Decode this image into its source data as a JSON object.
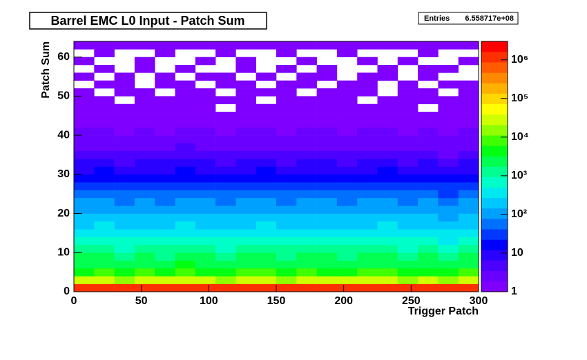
{
  "chart_data": {
    "type": "heatmap",
    "title": "Barrel EMC L0 Input - Patch Sum",
    "stats_label": "Entries",
    "stats_value": "6.558717e+08",
    "x_label": "Trigger Patch",
    "y_label": "Patch Sum",
    "xlim": [
      0,
      300
    ],
    "xticks": [
      0,
      50,
      100,
      150,
      200,
      250,
      300
    ],
    "ylim": [
      0,
      64
    ],
    "yticks": [
      0,
      10,
      20,
      30,
      40,
      50,
      60
    ],
    "zlim": [
      1,
      3000000
    ],
    "zlog": true,
    "zticks": [
      1,
      10,
      {
        "value": 100,
        "label": "10²"
      },
      {
        "value": 1000,
        "label": "10³"
      },
      {
        "value": 10000,
        "label": "10⁴"
      },
      {
        "value": 100000,
        "label": "10⁵"
      },
      {
        "value": 1000000,
        "label": "10⁶"
      }
    ],
    "colormap": [
      "#7f00ff",
      "#6a00ff",
      "#4c00ff",
      "#2a00ff",
      "#0000ff",
      "#0038ff",
      "#0070ff",
      "#00a0ff",
      "#00c8ff",
      "#00e8f0",
      "#00ffc8",
      "#00ff90",
      "#00ff50",
      "#00ff10",
      "#40ff00",
      "#90ff00",
      "#d0ff00",
      "#ffff00",
      "#ffd800",
      "#ffb000",
      "#ff8800",
      "#ff5c00",
      "#ff3000",
      "#ff0000"
    ],
    "xbins": [
      0,
      15,
      30,
      45,
      60,
      75,
      90,
      105,
      120,
      135,
      150,
      165,
      180,
      195,
      210,
      225,
      240,
      255,
      270,
      285,
      300
    ],
    "ybins": [
      0,
      2,
      4,
      6,
      8,
      10,
      12,
      14,
      16,
      18,
      20,
      22,
      24,
      26,
      28,
      30,
      32,
      34,
      36,
      38,
      40,
      42,
      44,
      46,
      48,
      50,
      52,
      54,
      56,
      58,
      60,
      62,
      64
    ],
    "z": [
      [
        1100000,
        1000000,
        1200000,
        950000,
        1100000,
        1050000,
        1000000,
        900000,
        1150000,
        1000000,
        1100000,
        950000,
        1050000,
        1100000,
        1000000,
        1200000,
        950000,
        1000000,
        900000,
        1100000
      ],
      [
        22000,
        25000,
        20000,
        24000,
        21000,
        23000,
        26000,
        19000,
        22000,
        25000,
        20000,
        23000,
        24000,
        21000,
        22000,
        25000,
        20000,
        23000,
        18000,
        24000
      ],
      [
        6000,
        6500,
        5500,
        6200,
        5800,
        6400,
        6000,
        5200,
        6100,
        6600,
        5700,
        6300,
        6000,
        5900,
        6200,
        6500,
        5600,
        6000,
        5000,
        6300
      ],
      [
        3000,
        3200,
        2800,
        3100,
        2900,
        3300,
        3000,
        2600,
        3100,
        3200,
        2800,
        3000,
        3100,
        2900,
        3000,
        3200,
        2700,
        3000,
        2500,
        3100
      ],
      [
        1800,
        1900,
        1600,
        1850,
        1700,
        1950,
        1800,
        1500,
        1850,
        1900,
        1650,
        1800,
        1850,
        1700,
        1800,
        1900,
        1600,
        1750,
        1450,
        1850
      ],
      [
        1000,
        1100,
        900,
        1050,
        950,
        1100,
        1000,
        850,
        1050,
        1100,
        950,
        1000,
        1050,
        950,
        1000,
        1100,
        900,
        1000,
        800,
        1050
      ],
      [
        600,
        650,
        550,
        620,
        580,
        660,
        600,
        500,
        620,
        650,
        560,
        600,
        630,
        570,
        600,
        650,
        540,
        600,
        480,
        620
      ],
      [
        350,
        380,
        320,
        360,
        340,
        390,
        350,
        300,
        360,
        380,
        330,
        350,
        370,
        330,
        350,
        380,
        320,
        350,
        280,
        360
      ],
      [
        250,
        270,
        230,
        260,
        240,
        280,
        250,
        210,
        260,
        270,
        230,
        250,
        260,
        240,
        250,
        270,
        220,
        250,
        200,
        260
      ],
      [
        180,
        190,
        160,
        185,
        170,
        200,
        180,
        150,
        185,
        190,
        165,
        180,
        185,
        170,
        180,
        190,
        160,
        175,
        140,
        185
      ],
      [
        120,
        130,
        110,
        125,
        115,
        135,
        120,
        100,
        125,
        130,
        110,
        120,
        125,
        115,
        120,
        130,
        105,
        120,
        95,
        125
      ],
      [
        80,
        85,
        70,
        82,
        75,
        90,
        80,
        65,
        82,
        85,
        72,
        80,
        82,
        76,
        80,
        85,
        70,
        78,
        62,
        82
      ],
      [
        50,
        55,
        45,
        52,
        48,
        58,
        50,
        42,
        52,
        55,
        46,
        50,
        52,
        48,
        50,
        55,
        44,
        50,
        40,
        52
      ],
      [
        30,
        33,
        27,
        31,
        29,
        35,
        30,
        25,
        31,
        33,
        28,
        30,
        31,
        29,
        30,
        33,
        26,
        30,
        24,
        31
      ],
      [
        18,
        20,
        16,
        19,
        17,
        21,
        18,
        15,
        19,
        20,
        17,
        18,
        19,
        17,
        18,
        20,
        16,
        18,
        14,
        19
      ],
      [
        12,
        13,
        10,
        12,
        11,
        14,
        12,
        10,
        12,
        13,
        11,
        12,
        12,
        11,
        12,
        13,
        10,
        12,
        9,
        12
      ],
      [
        7,
        8,
        6,
        7,
        7,
        8,
        7,
        6,
        7,
        8,
        6,
        7,
        7,
        6,
        7,
        8,
        6,
        7,
        5,
        7
      ],
      [
        5,
        5,
        4,
        5,
        4,
        6,
        5,
        4,
        5,
        5,
        4,
        5,
        5,
        4,
        5,
        5,
        4,
        5,
        3,
        5
      ],
      [
        3,
        3,
        2,
        3,
        3,
        4,
        3,
        2,
        3,
        3,
        3,
        3,
        3,
        2,
        3,
        3,
        2,
        3,
        2,
        3
      ],
      [
        2.5,
        2,
        2,
        3,
        2,
        3,
        2,
        2,
        2,
        3,
        2,
        2,
        3,
        2,
        2,
        3,
        2,
        2,
        2,
        2
      ],
      [
        2,
        2,
        1.5,
        2,
        1.5,
        2,
        2,
        1.5,
        2,
        2,
        1.5,
        2,
        2,
        1.5,
        2,
        2,
        1.5,
        2,
        1.5,
        2
      ],
      [
        1.5,
        1.5,
        1,
        1.5,
        1,
        1.5,
        1.5,
        1,
        1.5,
        1.5,
        1,
        1.5,
        1.5,
        1,
        1.5,
        1.5,
        1,
        1.5,
        1,
        1.5
      ],
      [
        1,
        1.5,
        1,
        1,
        1,
        1.5,
        1,
        1,
        1,
        1.5,
        1,
        1,
        1,
        1,
        1.5,
        1,
        1,
        1,
        1,
        1
      ],
      [
        1,
        1,
        1,
        1,
        1,
        1,
        1,
        0,
        1,
        1,
        1,
        1,
        1,
        1,
        1,
        1,
        1,
        0,
        1,
        1
      ],
      [
        1,
        1,
        0,
        1,
        1,
        1,
        1,
        1,
        1,
        0,
        1,
        1,
        1,
        1,
        0,
        1,
        1,
        1,
        1,
        1
      ],
      [
        1,
        0,
        1,
        1,
        0,
        1,
        1,
        0,
        1,
        1,
        1,
        0,
        1,
        1,
        1,
        0,
        1,
        1,
        0,
        1
      ],
      [
        0,
        1,
        1,
        0,
        1,
        1,
        0,
        1,
        1,
        0,
        1,
        1,
        0,
        1,
        1,
        0,
        1,
        0,
        1,
        1
      ],
      [
        1,
        0,
        1,
        0,
        1,
        0,
        1,
        1,
        0,
        1,
        0,
        1,
        1,
        0,
        1,
        1,
        0,
        1,
        0,
        0
      ],
      [
        0,
        1,
        0,
        1,
        0,
        1,
        0,
        0,
        1,
        0,
        1,
        0,
        1,
        0,
        0,
        1,
        0,
        1,
        1,
        0
      ],
      [
        1,
        0,
        0,
        1,
        0,
        0,
        1,
        0,
        1,
        0,
        0,
        1,
        0,
        0,
        1,
        0,
        1,
        0,
        0,
        1
      ],
      [
        0,
        1,
        0,
        0,
        1,
        0,
        0,
        1,
        0,
        0,
        1,
        0,
        0,
        1,
        0,
        0,
        0,
        1,
        0,
        0
      ],
      [
        1,
        1,
        1,
        1,
        1,
        1,
        1,
        1,
        1,
        1,
        1,
        1,
        1,
        1,
        1,
        1,
        1,
        1,
        1,
        1
      ]
    ]
  }
}
